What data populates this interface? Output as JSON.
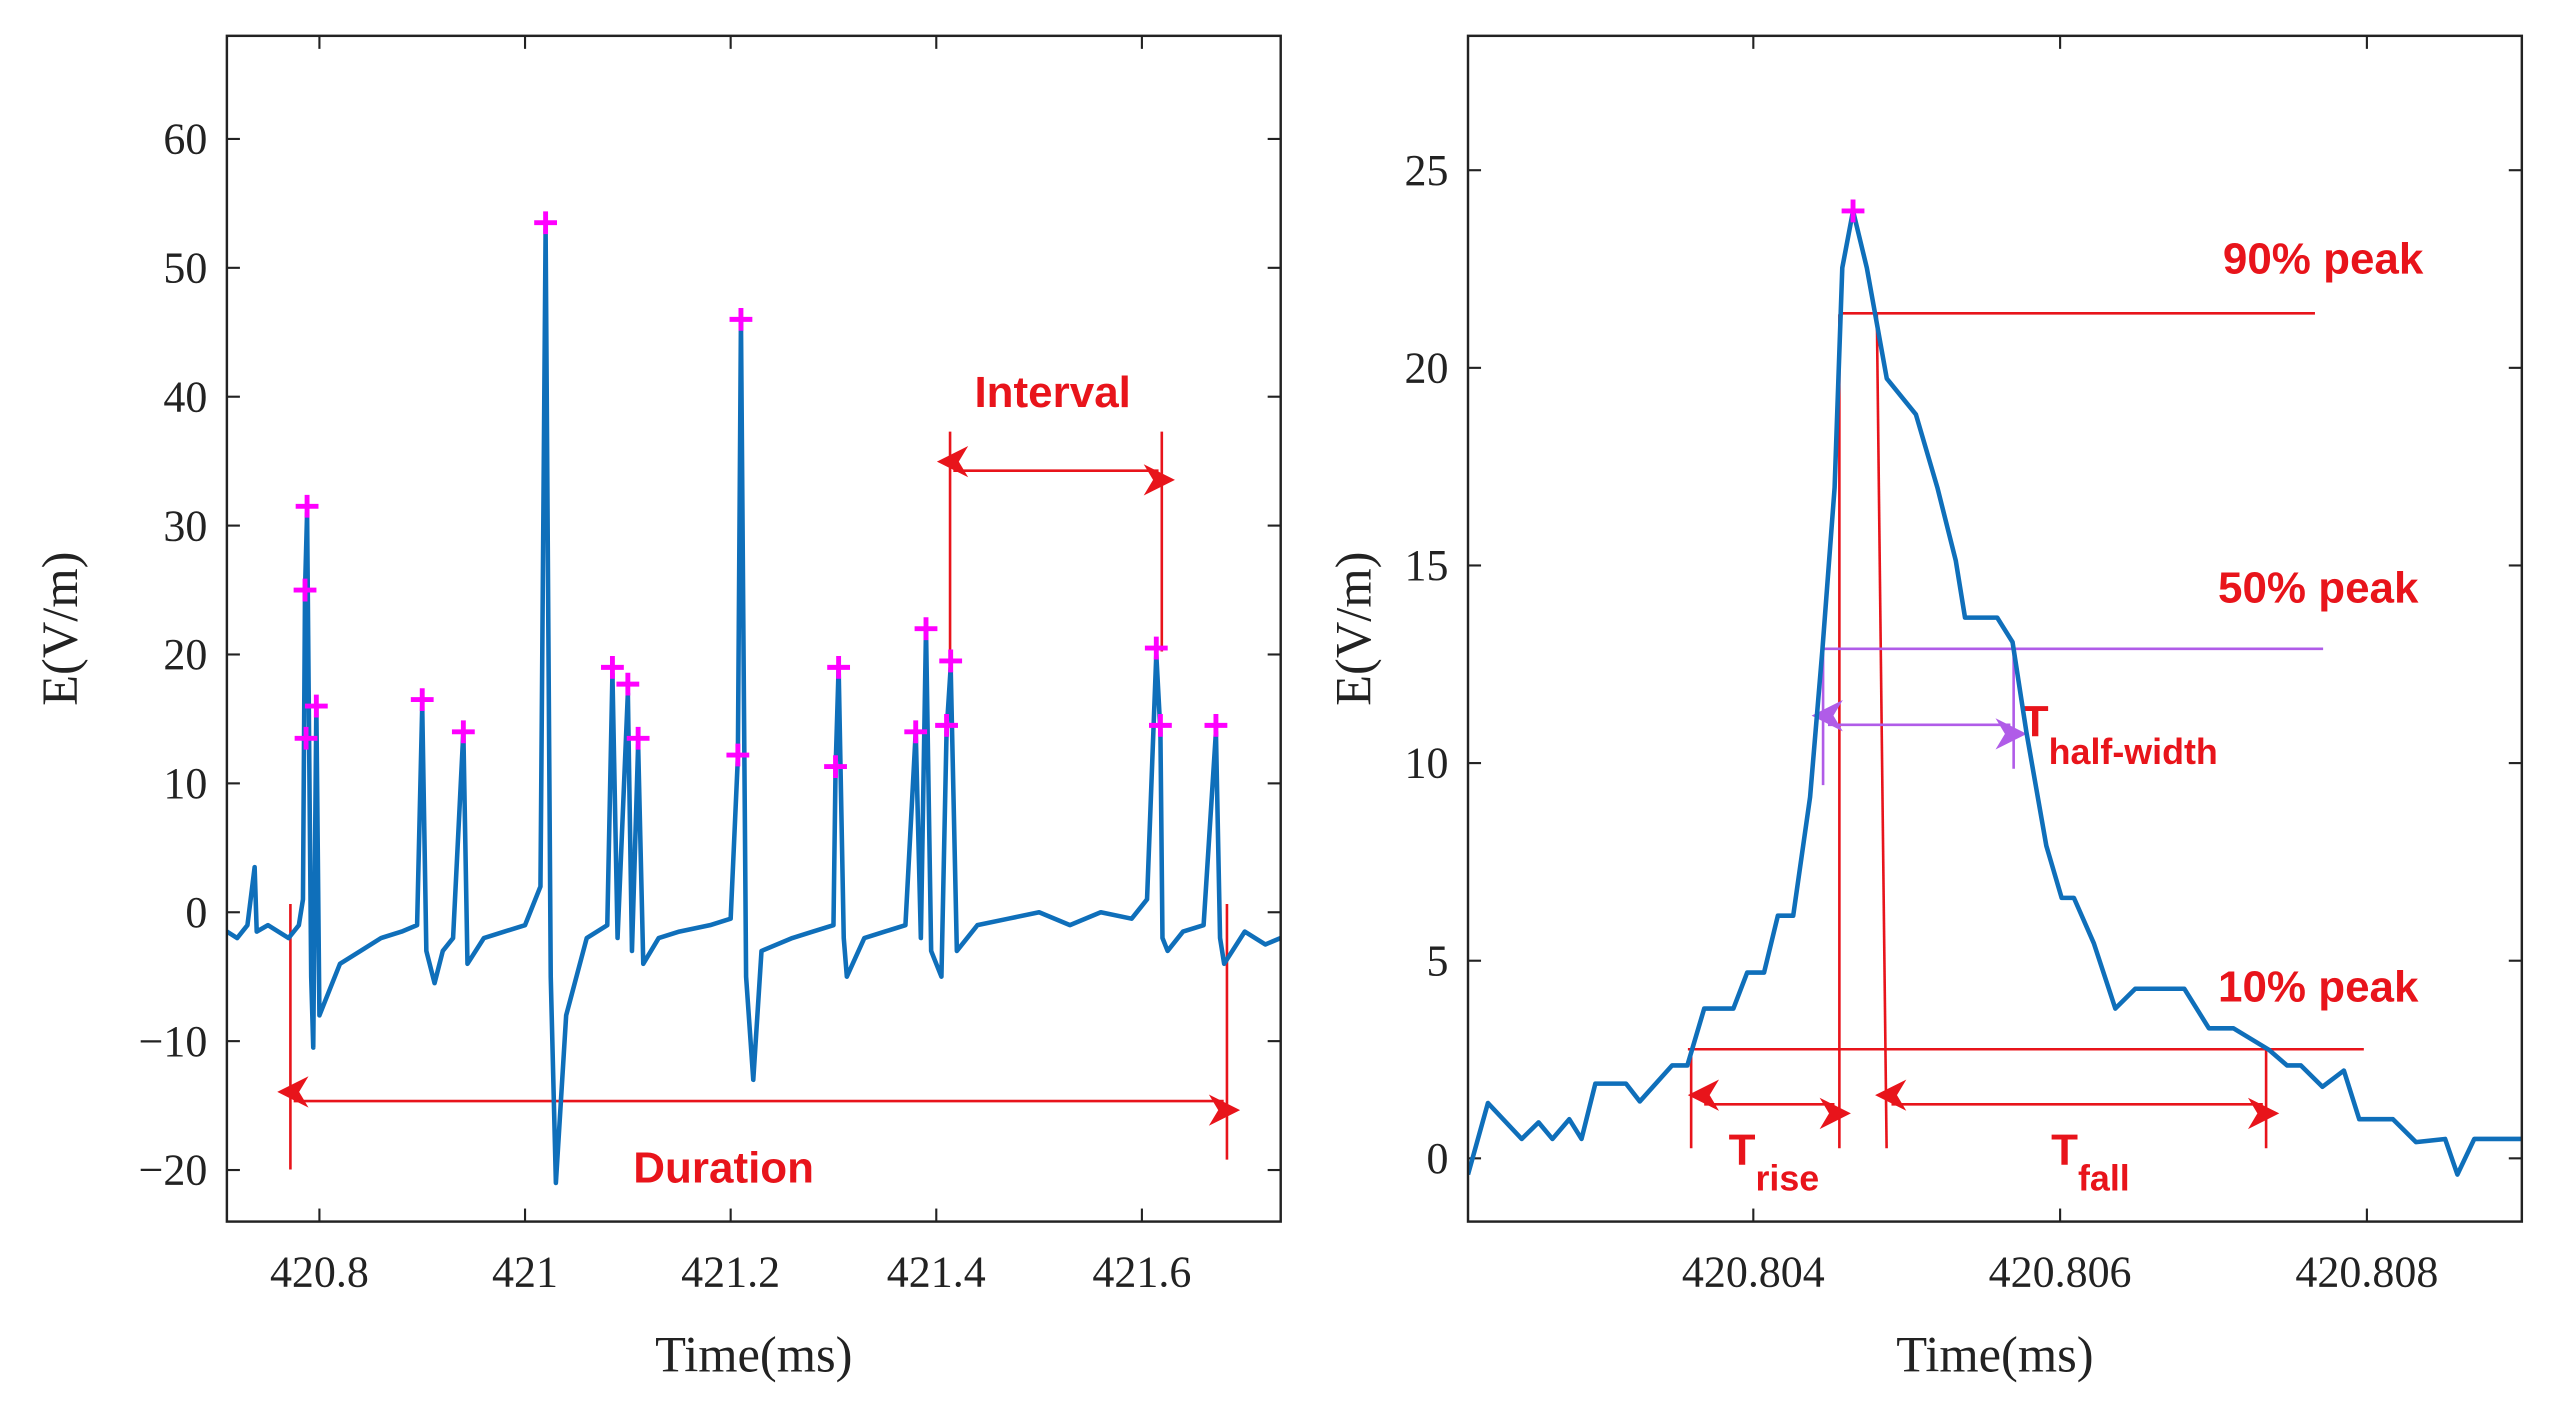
{
  "chart_data": [
    {
      "type": "line",
      "xlabel": "Time(ms)",
      "ylabel": "E(V/m)",
      "xlim": [
        420.71,
        421.735
      ],
      "ylim": [
        -24,
        68
      ],
      "xticks": [
        420.8,
        421,
        421.2,
        421.4,
        421.6
      ],
      "yticks": [
        {
          "value": -20,
          "label": "−20"
        },
        {
          "value": -10,
          "label": "−10"
        },
        0,
        10,
        20,
        30,
        40,
        50,
        60
      ],
      "series": [
        {
          "color": "#0f6fba",
          "x": [
            420.71,
            420.72,
            420.73,
            420.737,
            420.739,
            420.75,
            420.77,
            420.78,
            420.784,
            420.786,
            420.788,
            420.79,
            420.792,
            420.794,
            420.797,
            420.8,
            420.81,
            420.82,
            420.84,
            420.86,
            420.88,
            420.895,
            420.9,
            420.904,
            420.912,
            420.92,
            420.93,
            420.94,
            420.944,
            420.96,
            420.98,
            421.0,
            421.015,
            421.02,
            421.025,
            421.03,
            421.04,
            421.06,
            421.08,
            421.085,
            421.09,
            421.1,
            421.104,
            421.11,
            421.115,
            421.13,
            421.15,
            421.18,
            421.2,
            421.207,
            421.21,
            421.215,
            421.222,
            421.23,
            421.26,
            421.28,
            421.3,
            421.302,
            421.305,
            421.31,
            421.313,
            421.33,
            421.35,
            421.37,
            421.38,
            421.385,
            421.39,
            421.395,
            421.405,
            421.41,
            421.414,
            421.42,
            421.44,
            421.47,
            421.5,
            421.53,
            421.56,
            421.59,
            421.605,
            421.614,
            421.618,
            421.62,
            421.625,
            421.64,
            421.66,
            421.672,
            421.676,
            421.68,
            421.7,
            421.72,
            421.735
          ],
          "values": [
            -1.5,
            -2,
            -1,
            3.5,
            -1.5,
            -1,
            -2,
            -1,
            1,
            25,
            31,
            13,
            -5,
            -10.5,
            16,
            -8,
            -6,
            -4,
            -3,
            -2,
            -1.5,
            -1,
            16,
            -3,
            -5.5,
            -3,
            -2,
            14,
            -4,
            -2,
            -1.5,
            -1,
            2,
            53,
            -5,
            -21,
            -8,
            -2,
            -1,
            18.5,
            -2,
            17,
            -3,
            13,
            -4,
            -2,
            -1.5,
            -1,
            -0.5,
            12,
            46,
            -5,
            -13,
            -3,
            -2,
            -1.5,
            -1,
            11,
            19,
            -2,
            -5,
            -2,
            -1.5,
            -1,
            14,
            -2,
            22,
            -3,
            -5,
            14,
            19,
            -3,
            -1,
            -0.5,
            0,
            -1,
            0,
            -0.5,
            1,
            20,
            14,
            -2,
            -3,
            -1.5,
            -1,
            14,
            -2,
            -4,
            -1.5,
            -2.5,
            -2
          ]
        },
        {
          "color": "#ff00ff",
          "marker": "+",
          "x": [
            420.786,
            420.788,
            420.787,
            420.797,
            420.9,
            420.94,
            421.02,
            421.085,
            421.1,
            421.11,
            421.207,
            421.21,
            421.302,
            421.305,
            421.38,
            421.39,
            421.41,
            421.414,
            421.614,
            421.618,
            421.672
          ],
          "values": [
            25,
            31.5,
            13.5,
            16,
            16.5,
            14,
            53.5,
            19,
            17.7,
            13.5,
            12.2,
            46,
            11.3,
            19,
            14,
            22,
            14.5,
            19.5,
            20.5,
            14.5,
            14.5
          ]
        }
      ],
      "annotations": [
        "Interval",
        "Duration"
      ]
    },
    {
      "type": "line",
      "xlabel": "Time(ms)",
      "ylabel": "E(V/m)",
      "xlim": [
        420.80214,
        420.80901
      ],
      "ylim": [
        -1.6,
        28.4
      ],
      "xticks": [
        420.804,
        420.806,
        420.808
      ],
      "yticks": [
        0,
        5,
        10,
        15,
        20,
        25
      ],
      "series": [
        {
          "color": "#0f6fba",
          "x": [
            420.80214,
            420.80227,
            420.80249,
            420.8026,
            420.80269,
            420.8028,
            420.80288,
            420.80297,
            420.80317,
            420.80326,
            420.80347,
            420.80357,
            420.80368,
            420.80387,
            420.80396,
            420.80407,
            420.80416,
            420.80426,
            420.80437,
            420.80445,
            420.80453,
            420.80458,
            420.80465,
            420.80474,
            420.80487,
            420.80506,
            420.8052,
            420.80532,
            420.80538,
            420.80559,
            420.80569,
            420.80578,
            420.80591,
            420.80601,
            420.80609,
            420.80622,
            420.80636,
            420.80649,
            420.80681,
            420.80697,
            420.80713,
            420.80736,
            420.80748,
            420.80757,
            420.80771,
            420.80785,
            420.80795,
            420.80817,
            420.80832,
            420.80851,
            420.80859,
            420.8087,
            420.80901
          ],
          "values": [
            -0.41,
            1.4,
            0.49,
            0.91,
            0.49,
            0.99,
            0.49,
            1.89,
            1.89,
            1.44,
            2.35,
            2.35,
            3.79,
            3.79,
            4.7,
            4.7,
            6.14,
            6.14,
            9.14,
            12.85,
            16.97,
            22.53,
            23.97,
            22.53,
            19.73,
            18.82,
            16.97,
            15.12,
            13.68,
            13.68,
            13.06,
            10.79,
            7.91,
            6.59,
            6.59,
            5.44,
            3.79,
            4.29,
            4.29,
            3.29,
            3.29,
            2.75,
            2.35,
            2.35,
            1.81,
            2.22,
            0.99,
            0.99,
            0.41,
            0.49,
            -0.41,
            0.49,
            0.49
          ]
        },
        {
          "color": "#ff00ff",
          "marker": "+",
          "x": [
            420.80465
          ],
          "values": [
            23.97
          ]
        }
      ],
      "reference_lines": [
        {
          "label": "90% peak",
          "value": 21.38,
          "color": "#e8141b"
        },
        {
          "label": "50% peak",
          "value": 12.89,
          "color": "#b05ce8"
        },
        {
          "label": "10% peak",
          "value": 2.76,
          "color": "#e8141b"
        }
      ],
      "time_labels": [
        {
          "symbol": "T",
          "subscript": "half-width",
          "color": "#e8141b"
        },
        {
          "symbol": "T",
          "subscript": "rise",
          "color": "#e8141b"
        },
        {
          "symbol": "T",
          "subscript": "fall",
          "color": "#e8141b"
        }
      ]
    }
  ]
}
